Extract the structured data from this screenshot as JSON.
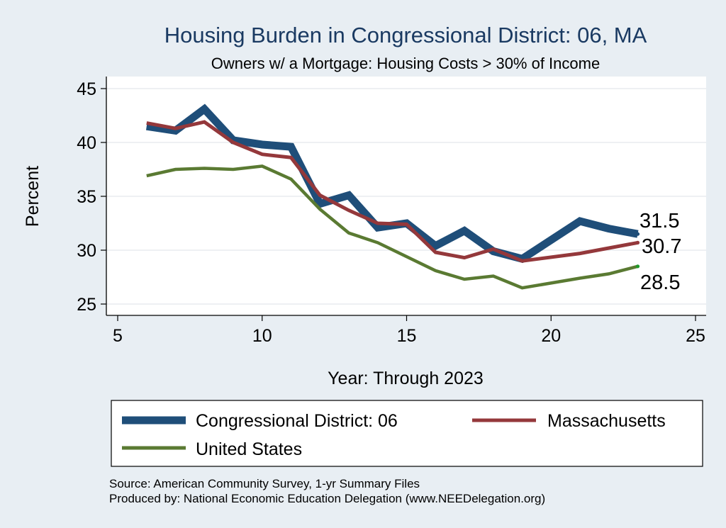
{
  "chart_data": {
    "type": "line",
    "title": "Housing Burden in Congressional District:  06, MA",
    "subtitle": "Owners w/ a Mortgage: Housing Costs > 30% of Income",
    "xlabel": "Year: Through 2023",
    "ylabel": "Percent",
    "xlim": [
      5,
      25
    ],
    "ylim": [
      25,
      45
    ],
    "xticks": [
      5,
      10,
      15,
      20,
      25
    ],
    "yticks": [
      25,
      30,
      35,
      40,
      45
    ],
    "grid": true,
    "legend_position": "bottom",
    "series": [
      {
        "name": "Congressional District:  06",
        "color": "#1f4e79",
        "x": [
          6,
          7,
          8,
          9,
          10,
          11,
          12,
          13,
          14,
          15,
          16,
          17,
          18,
          19,
          21,
          22,
          23
        ],
        "y": [
          41.5,
          41.1,
          43.1,
          40.2,
          39.8,
          39.6,
          34.3,
          35.1,
          32.1,
          32.5,
          30.4,
          31.8,
          29.9,
          29.2,
          32.7,
          32.0,
          31.5
        ],
        "end_label": "31.5"
      },
      {
        "name": "Massachusetts",
        "color": "#94383b",
        "x": [
          6,
          7,
          8,
          9,
          10,
          11,
          12,
          13,
          14,
          15,
          16,
          17,
          18,
          19,
          21,
          22,
          23
        ],
        "y": [
          41.8,
          41.3,
          41.9,
          40.0,
          38.9,
          38.6,
          35.1,
          33.7,
          32.5,
          32.4,
          29.8,
          29.3,
          30.1,
          29.0,
          29.7,
          30.2,
          30.7
        ],
        "end_label": "30.7"
      },
      {
        "name": "United States",
        "color": "#5a7a32",
        "x": [
          6,
          7,
          8,
          9,
          10,
          11,
          12,
          13,
          14,
          15,
          16,
          17,
          18,
          19,
          21,
          22,
          23
        ],
        "y": [
          36.9,
          37.5,
          37.6,
          37.5,
          37.8,
          36.6,
          33.8,
          31.6,
          30.7,
          29.4,
          28.1,
          27.3,
          27.6,
          26.5,
          27.4,
          27.8,
          28.5
        ],
        "end_label": "28.5"
      }
    ],
    "source_note": "Source: American Community Survey, 1-yr Summary Files",
    "producer_note": "Produced by: National Economic Education Delegation (www.NEEDelegation.org)"
  }
}
